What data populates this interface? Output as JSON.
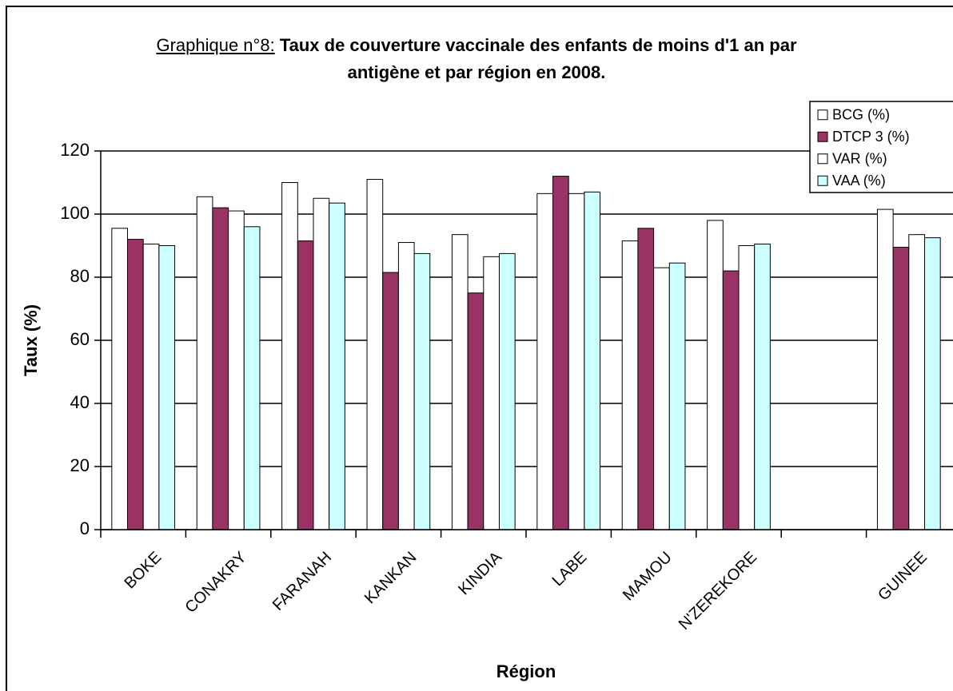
{
  "chart_data": {
    "type": "bar",
    "title_label": "Graphique n°8:",
    "title": "Taux de couverture vaccinale des enfants de moins d'1 an par antigène et par région en 2008.",
    "x_label": "Région",
    "y_label": "Taux (%)",
    "categories": [
      "BOKE",
      "CONAKRY",
      "FARANAH",
      "KANKAN",
      "KINDIA",
      "LABE",
      "MAMOU",
      "N'ZEREKORE",
      null,
      "GUINEE"
    ],
    "series": [
      {
        "name": "BCG (%)",
        "color": "#ffffff",
        "values": [
          95.5,
          105.5,
          110,
          111,
          93.5,
          106.5,
          91.5,
          98,
          null,
          101.5
        ]
      },
      {
        "name": "DTCP 3 (%)",
        "color": "#993366",
        "values": [
          92,
          102,
          91.5,
          81.5,
          75,
          112,
          95.5,
          82,
          null,
          89.5
        ]
      },
      {
        "name": "VAR (%)",
        "color": "#ffffff",
        "values": [
          90.5,
          101,
          105,
          91,
          86.5,
          106.5,
          83,
          90,
          null,
          93.5
        ]
      },
      {
        "name": "VAA (%)",
        "color": "#ccffff",
        "values": [
          90,
          96,
          103.5,
          87.5,
          87.5,
          107,
          84.5,
          90.5,
          null,
          92.5
        ]
      }
    ],
    "ylim": [
      0,
      120
    ],
    "yticks": [
      0,
      20,
      40,
      60,
      80,
      100,
      120
    ],
    "grid": true,
    "legend": "top-right"
  }
}
